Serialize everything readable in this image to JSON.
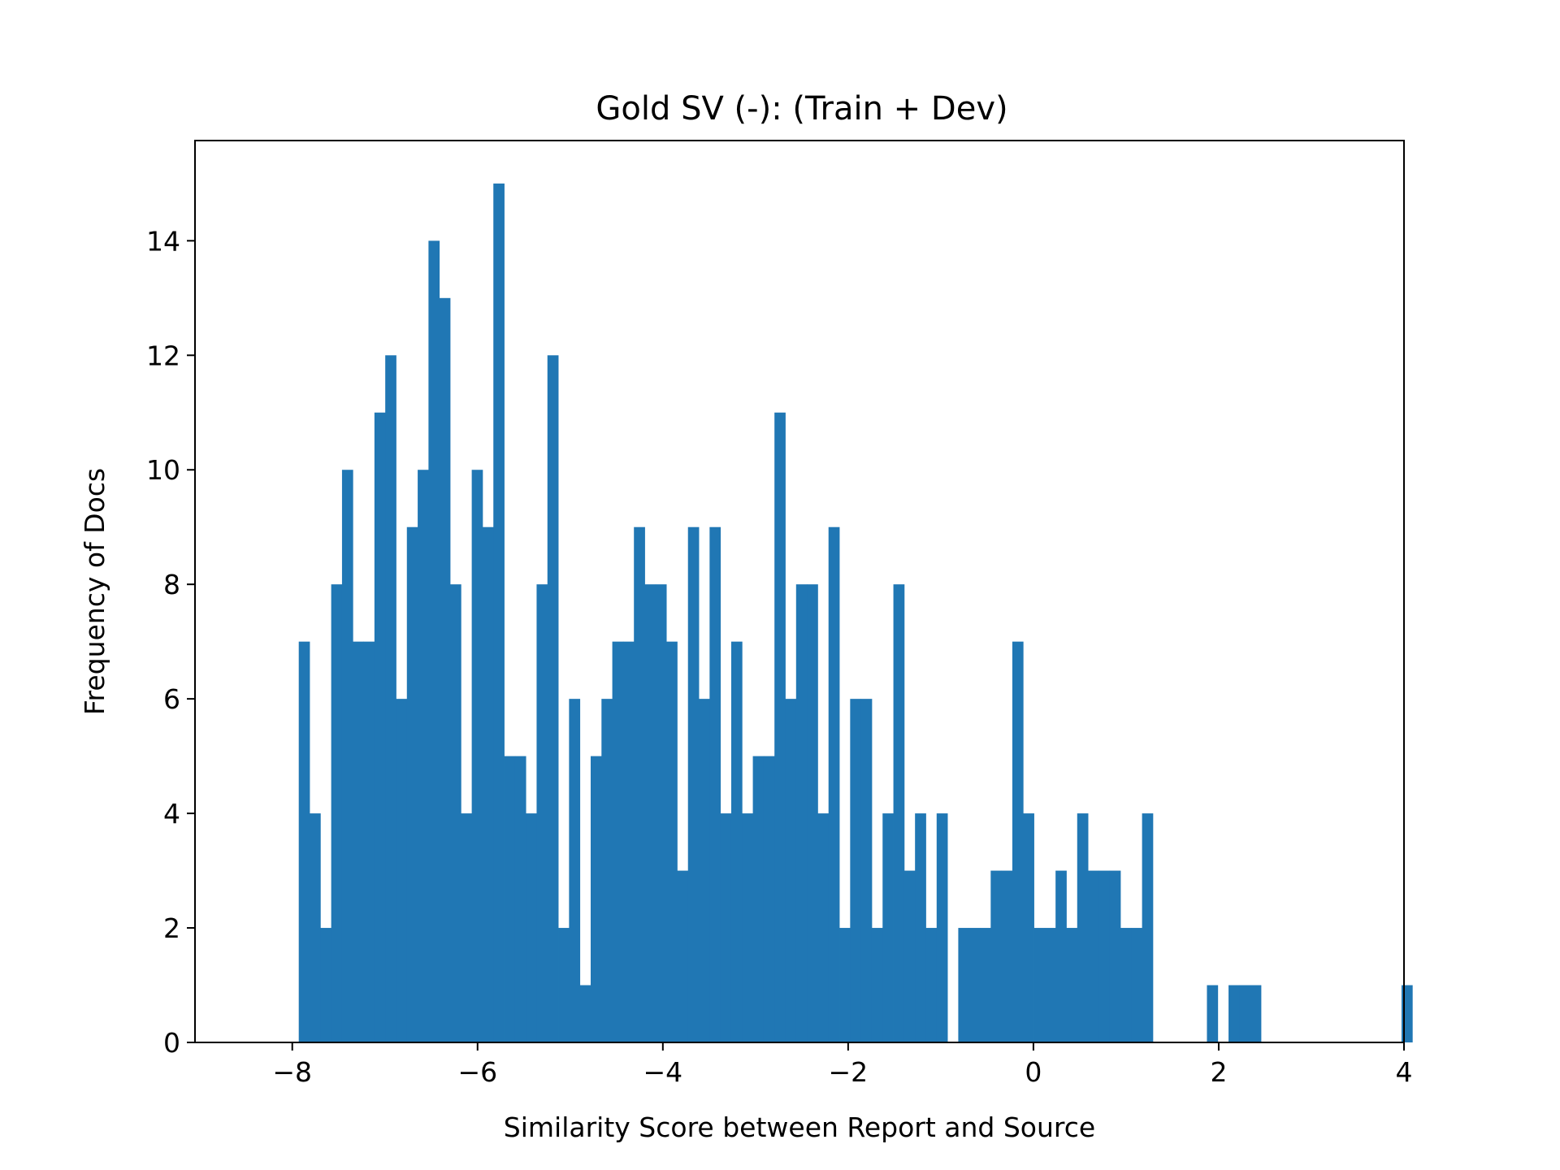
{
  "chart_data": {
    "type": "bar",
    "title": "Gold SV (-): (Train + Dev)",
    "xlabel": "Similarity Score between Report and Source",
    "ylabel": "Frequency of Docs",
    "xlim": [
      -9.05,
      4.0
    ],
    "ylim": [
      0,
      15.75
    ],
    "xticks": [
      -8,
      -6,
      -4,
      -2,
      0,
      2,
      4
    ],
    "xtick_labels": [
      "−8",
      "−6",
      "−4",
      "−2",
      "0",
      "2",
      "4"
    ],
    "yticks": [
      0,
      2,
      4,
      6,
      8,
      10,
      12,
      14
    ],
    "ytick_labels": [
      "0",
      "2",
      "4",
      "6",
      "8",
      "10",
      "12",
      "14"
    ],
    "bar_color": "#2077b4",
    "grid": false,
    "bin_start": -7.93,
    "bin_width": 0.1167,
    "values": [
      7,
      4,
      2,
      8,
      10,
      7,
      7,
      11,
      12,
      6,
      9,
      10,
      14,
      13,
      8,
      4,
      10,
      9,
      15,
      5,
      5,
      4,
      8,
      12,
      2,
      6,
      1,
      5,
      6,
      7,
      7,
      9,
      8,
      8,
      7,
      3,
      9,
      6,
      9,
      4,
      7,
      4,
      5,
      5,
      11,
      6,
      8,
      8,
      4,
      9,
      2,
      6,
      6,
      2,
      4,
      8,
      3,
      4,
      2,
      4,
      0,
      2,
      2,
      2,
      3,
      3,
      7,
      4,
      2,
      2,
      3,
      2,
      4,
      3,
      3,
      3,
      2,
      2,
      4,
      0,
      0,
      0,
      0,
      0,
      1,
      0,
      1,
      1,
      1,
      0,
      0,
      0,
      0,
      0,
      0,
      0,
      0,
      0,
      0,
      0,
      0,
      0,
      1
    ]
  }
}
